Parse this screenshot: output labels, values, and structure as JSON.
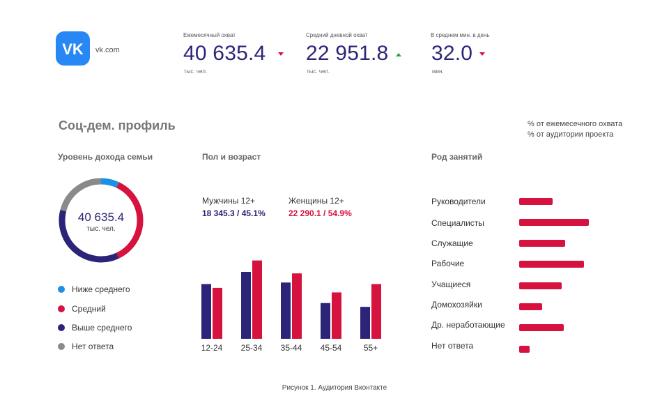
{
  "header": {
    "brand": "vk.com",
    "logo_icon": "vk-logo-icon",
    "stats": [
      {
        "label": "Ежемесячный охват",
        "value": "40 635.4",
        "unit": "тыс. чел.",
        "trend": "down"
      },
      {
        "label": "Средний дневной охват",
        "value": "22 951.8",
        "unit": "тыс. чел.",
        "trend": "up"
      },
      {
        "label": "В среднем мин. в день",
        "value": "32.0",
        "unit": "мин.",
        "trend": "down"
      }
    ]
  },
  "section_title": "Соц-дем. профиль",
  "legend_notes": [
    "% от ежемесечного охвата",
    "% от аудитории проекта"
  ],
  "colors": {
    "blue": "#2b2478",
    "red": "#d6123e",
    "light_blue": "#1e8fe6",
    "gray": "#8a8a8a",
    "up": "#2ea043"
  },
  "income": {
    "title": "Уровень дохода семьи",
    "center_value": "40 635.4",
    "center_unit": "тыс. чел."
  },
  "gender": {
    "title": "Пол и возраст",
    "male_label": "Мужчины 12+",
    "male_value": "18 345.3 / 45.1%",
    "female_label": "Женщины 12+",
    "female_value": "22 290.1 / 54.9%"
  },
  "occupation_title": "Род занятий",
  "caption": "Рисунок 1. Аудитория Вконтакте",
  "chart_data": [
    {
      "type": "pie",
      "labels": [
        "Ниже среднего",
        "Средний",
        "Выше среднего",
        "Нет ответа"
      ],
      "values": [
        7,
        36,
        36,
        21
      ],
      "colors": [
        "#1e8fe6",
        "#d6123e",
        "#2b2478",
        "#8a8a8a"
      ]
    },
    {
      "type": "bar",
      "categories": [
        "12-24",
        "25-34",
        "35-44",
        "45-54",
        "55+"
      ],
      "series": [
        {
          "name": "Мужчины 12+",
          "color": "#2b2478",
          "values": [
            72,
            88,
            74,
            47,
            42
          ]
        },
        {
          "name": "Женщины 12+",
          "color": "#d6123e",
          "values": [
            67,
            103,
            86,
            61,
            72
          ]
        }
      ]
    },
    {
      "type": "bar",
      "orientation": "horizontal",
      "categories": [
        "Руководители",
        "Специалисты",
        "Служащие",
        "Рабочие",
        "Учащиеся",
        "Домохозяйки",
        "Др. неработающие",
        "Нет ответа"
      ],
      "values": [
        48,
        100,
        66,
        93,
        61,
        33,
        64,
        15
      ],
      "color": "#d6123e"
    }
  ]
}
